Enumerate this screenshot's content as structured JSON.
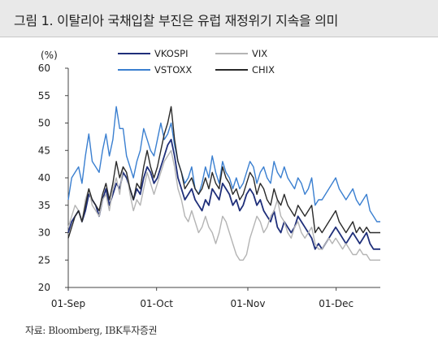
{
  "header": {
    "title": "그림 1. 이탈리아 국채입찰 부진은 유럽 재정위기 지속을 의미"
  },
  "source": "자료: Bloomberg, IBK투자증권",
  "chart_data": {
    "type": "line",
    "ylabel": "(%)",
    "ylim": [
      20,
      60
    ],
    "yticks": [
      "20",
      "25",
      "30",
      "35",
      "40",
      "45",
      "50",
      "55",
      "60"
    ],
    "xticks": [
      "01-Sep",
      "01-Oct",
      "01-Nov",
      "01-Dec"
    ],
    "xtick_dates": [
      "2011-09-01",
      "2011-10-01",
      "2011-11-01",
      "2011-12-01"
    ],
    "xrange": [
      "2011-09-01",
      "2011-12-16"
    ],
    "grid": false,
    "legend_position": "top",
    "series": [
      {
        "name": "VKOSPI",
        "color": "#1f2f7a",
        "width": 1.8,
        "values": [
          30,
          32,
          33,
          34,
          32,
          34,
          37,
          36,
          35,
          33,
          36,
          38,
          35,
          37,
          39,
          38,
          41,
          40,
          38,
          36,
          38,
          37,
          40,
          42,
          41,
          39,
          40,
          42,
          44,
          46,
          47,
          44,
          40,
          38,
          36,
          37,
          38,
          36,
          35,
          34,
          36,
          35,
          38,
          37,
          36,
          39,
          38,
          37,
          35,
          36,
          34,
          35,
          37,
          38,
          37,
          35,
          36,
          34,
          33,
          32,
          34,
          31,
          30,
          32,
          31,
          30,
          31,
          33,
          32,
          31,
          30,
          29,
          27,
          28,
          27,
          28,
          29,
          30,
          31,
          30,
          29,
          28,
          29,
          30,
          29,
          28,
          29,
          30,
          28,
          27,
          27,
          27
        ]
      },
      {
        "name": "VIX",
        "color": "#b4b4b4",
        "width": 1.4,
        "values": [
          31,
          33,
          35,
          34,
          32,
          36,
          38,
          35,
          34,
          33,
          36,
          37,
          34,
          38,
          40,
          37,
          42,
          41,
          37,
          34,
          36,
          35,
          38,
          41,
          39,
          37,
          39,
          41,
          43,
          44,
          45,
          42,
          38,
          36,
          33,
          32,
          34,
          32,
          30,
          31,
          33,
          31,
          30,
          28,
          30,
          33,
          32,
          30,
          28,
          26,
          25,
          25,
          26,
          29,
          31,
          33,
          32,
          30,
          31,
          33,
          34,
          36,
          33,
          32,
          30,
          29,
          31,
          32,
          30,
          29,
          30,
          31,
          28,
          27,
          27,
          28,
          29,
          28,
          29,
          28,
          27,
          28,
          27,
          26,
          26,
          27,
          26,
          26,
          25,
          25,
          25,
          25
        ]
      },
      {
        "name": "VSTOXX",
        "color": "#3a7fd0",
        "width": 1.4,
        "values": [
          36,
          40,
          41,
          42,
          39,
          44,
          48,
          43,
          42,
          41,
          45,
          48,
          44,
          47,
          53,
          49,
          49,
          44,
          42,
          40,
          43,
          45,
          49,
          47,
          45,
          44,
          47,
          50,
          47,
          48,
          50,
          46,
          43,
          41,
          39,
          40,
          42,
          38,
          37,
          39,
          42,
          40,
          44,
          41,
          39,
          43,
          41,
          40,
          38,
          40,
          38,
          39,
          41,
          43,
          42,
          39,
          41,
          42,
          40,
          39,
          43,
          41,
          40,
          42,
          40,
          39,
          38,
          40,
          39,
          37,
          38,
          40,
          35,
          36,
          36,
          37,
          38,
          39,
          40,
          38,
          37,
          36,
          37,
          38,
          36,
          35,
          36,
          37,
          34,
          33,
          32,
          32
        ]
      },
      {
        "name": "CHIX",
        "color": "#2a2a2a",
        "width": 1.4,
        "values": [
          29,
          31,
          33,
          34,
          32,
          35,
          38,
          36,
          35,
          34,
          37,
          39,
          36,
          39,
          43,
          40,
          42,
          41,
          38,
          36,
          39,
          38,
          42,
          45,
          42,
          40,
          42,
          45,
          48,
          50,
          53,
          47,
          43,
          41,
          38,
          39,
          40,
          38,
          37,
          38,
          40,
          38,
          41,
          39,
          38,
          42,
          40,
          39,
          37,
          38,
          36,
          37,
          39,
          41,
          40,
          37,
          39,
          38,
          36,
          35,
          38,
          36,
          35,
          37,
          35,
          34,
          33,
          35,
          34,
          33,
          34,
          35,
          30,
          31,
          30,
          31,
          32,
          33,
          34,
          32,
          31,
          30,
          31,
          32,
          30,
          31,
          30,
          31,
          30,
          30,
          30,
          30
        ]
      }
    ]
  }
}
